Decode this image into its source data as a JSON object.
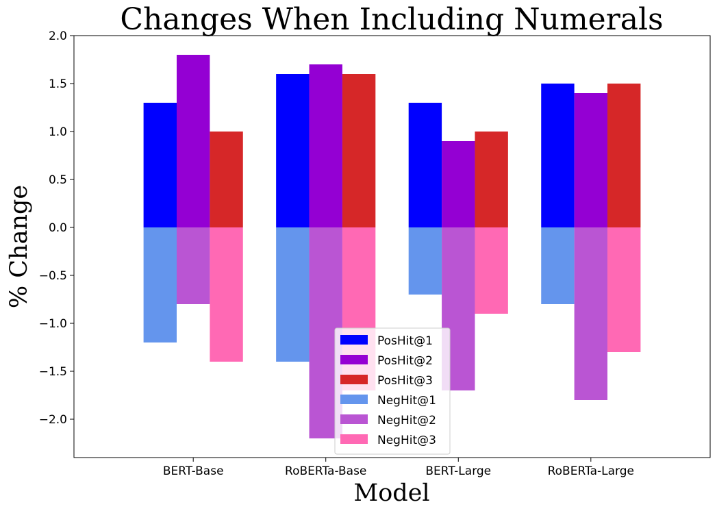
{
  "chart_data": {
    "type": "bar",
    "title": "Changes When Including Numerals",
    "xlabel": "Model",
    "ylabel": "% Change",
    "ylim": [
      -2.4,
      2.0
    ],
    "yticks": [
      2.0,
      1.5,
      1.0,
      0.5,
      0.0,
      -0.5,
      -1.0,
      -1.5,
      -2.0
    ],
    "ytick_labels": [
      "2.0",
      "1.5",
      "1.0",
      "0.5",
      "0.0",
      "−0.5",
      "−1.0",
      "−1.5",
      "−2.0"
    ],
    "categories": [
      "BERT-Base",
      "RoBERTa-Base",
      "BERT-Large",
      "RoBERTa-Large"
    ],
    "grid": false,
    "legend_position": "bottom-center",
    "series": [
      {
        "name": "PosHit@1",
        "color": "#0000ff",
        "values": [
          1.3,
          1.6,
          1.3,
          1.5
        ]
      },
      {
        "name": "PosHit@2",
        "color": "#9400d3",
        "values": [
          1.8,
          1.7,
          0.9,
          1.4
        ]
      },
      {
        "name": "PosHit@3",
        "color": "#d62728",
        "values": [
          1.0,
          1.6,
          1.0,
          1.5
        ]
      },
      {
        "name": "NegHit@1",
        "color": "#6495ed",
        "values": [
          -1.2,
          -1.4,
          -0.7,
          -0.8
        ]
      },
      {
        "name": "NegHit@2",
        "color": "#ba55d3",
        "values": [
          -0.8,
          -2.2,
          -1.7,
          -1.8
        ]
      },
      {
        "name": "NegHit@3",
        "color": "#ff69b4",
        "values": [
          -1.4,
          -1.7,
          -0.9,
          -1.3
        ]
      }
    ]
  }
}
